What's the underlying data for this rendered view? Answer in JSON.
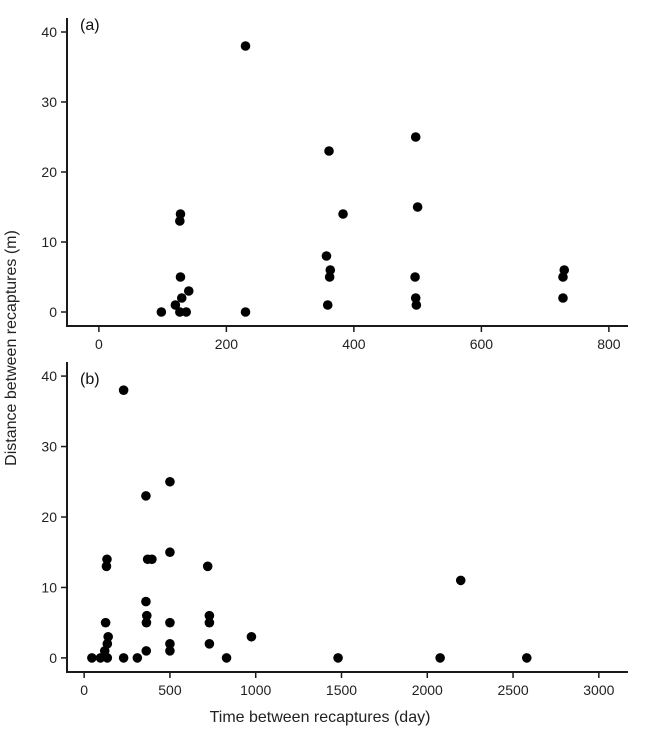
{
  "chart_data": [
    {
      "type": "scatter",
      "panel_label": "(a)",
      "xlabel": "",
      "ylabel": "Distance between recaptures (m)",
      "xlim": [
        -50,
        830
      ],
      "ylim": [
        -2,
        42
      ],
      "xticks": [
        0,
        200,
        400,
        600,
        800
      ],
      "yticks": [
        0,
        10,
        20,
        30,
        40
      ],
      "grid": false,
      "point_color": "#000000",
      "points": [
        {
          "x": 98,
          "y": 0
        },
        {
          "x": 120,
          "y": 1
        },
        {
          "x": 127,
          "y": 0
        },
        {
          "x": 130,
          "y": 2
        },
        {
          "x": 128,
          "y": 5
        },
        {
          "x": 137,
          "y": 0
        },
        {
          "x": 141,
          "y": 3
        },
        {
          "x": 127,
          "y": 13
        },
        {
          "x": 128,
          "y": 14
        },
        {
          "x": 230,
          "y": 38
        },
        {
          "x": 230,
          "y": 0
        },
        {
          "x": 357,
          "y": 8
        },
        {
          "x": 359,
          "y": 1
        },
        {
          "x": 362,
          "y": 5
        },
        {
          "x": 363,
          "y": 6
        },
        {
          "x": 361,
          "y": 23
        },
        {
          "x": 383,
          "y": 14
        },
        {
          "x": 497,
          "y": 25
        },
        {
          "x": 500,
          "y": 15
        },
        {
          "x": 496,
          "y": 5
        },
        {
          "x": 497,
          "y": 2
        },
        {
          "x": 498,
          "y": 1
        },
        {
          "x": 728,
          "y": 5
        },
        {
          "x": 730,
          "y": 6
        },
        {
          "x": 728,
          "y": 2
        }
      ]
    },
    {
      "type": "scatter",
      "panel_label": "(b)",
      "xlabel": "Time between recaptures (day)",
      "ylabel": "",
      "xlim": [
        -100,
        3170
      ],
      "ylim": [
        -2,
        42
      ],
      "xticks": [
        0,
        500,
        1000,
        1500,
        2000,
        2500,
        3000
      ],
      "yticks": [
        0,
        10,
        20,
        30,
        40
      ],
      "grid": false,
      "point_color": "#000000",
      "points": [
        {
          "x": 45,
          "y": 0
        },
        {
          "x": 95,
          "y": 0
        },
        {
          "x": 120,
          "y": 1
        },
        {
          "x": 135,
          "y": 0
        },
        {
          "x": 135,
          "y": 2
        },
        {
          "x": 140,
          "y": 3
        },
        {
          "x": 125,
          "y": 5
        },
        {
          "x": 130,
          "y": 13
        },
        {
          "x": 133,
          "y": 14
        },
        {
          "x": 230,
          "y": 0
        },
        {
          "x": 310,
          "y": 0
        },
        {
          "x": 230,
          "y": 38
        },
        {
          "x": 360,
          "y": 8
        },
        {
          "x": 362,
          "y": 1
        },
        {
          "x": 363,
          "y": 5
        },
        {
          "x": 365,
          "y": 6
        },
        {
          "x": 360,
          "y": 23
        },
        {
          "x": 370,
          "y": 14
        },
        {
          "x": 395,
          "y": 14
        },
        {
          "x": 500,
          "y": 25
        },
        {
          "x": 500,
          "y": 15
        },
        {
          "x": 500,
          "y": 5
        },
        {
          "x": 500,
          "y": 2
        },
        {
          "x": 500,
          "y": 1
        },
        {
          "x": 720,
          "y": 13
        },
        {
          "x": 730,
          "y": 6
        },
        {
          "x": 730,
          "y": 5
        },
        {
          "x": 730,
          "y": 2
        },
        {
          "x": 830,
          "y": 0
        },
        {
          "x": 975,
          "y": 3
        },
        {
          "x": 1480,
          "y": 0
        },
        {
          "x": 2075,
          "y": 0
        },
        {
          "x": 2195,
          "y": 11
        },
        {
          "x": 2580,
          "y": 0
        }
      ]
    }
  ]
}
